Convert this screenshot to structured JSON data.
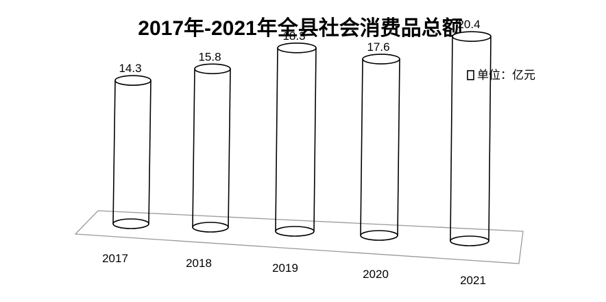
{
  "chart_data": {
    "type": "bar",
    "title": "2017年-2021年全县社会消费品总额",
    "categories": [
      "2017",
      "2018",
      "2019",
      "2020",
      "2021"
    ],
    "values": [
      14.3,
      15.8,
      18.3,
      17.6,
      20.4
    ],
    "value_labels": [
      "14.3",
      "15.8",
      "18.3",
      "17.6",
      "20.4"
    ],
    "legend": {
      "label": "单位：亿元",
      "position": "top-right"
    },
    "style": "3d-cylinder",
    "colors": {
      "outline": "#000000",
      "floor": "#999999",
      "fill": "#ffffff"
    },
    "grid": false
  }
}
